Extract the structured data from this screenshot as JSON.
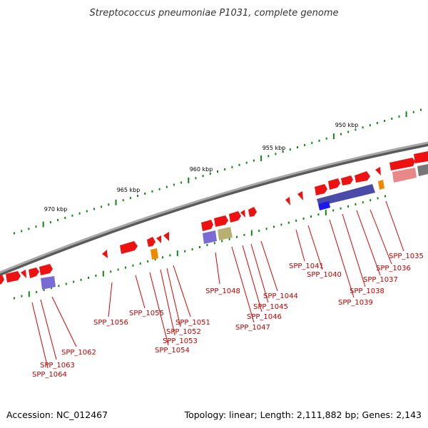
{
  "title": "Streptococcus pneumoniae P1031, complete genome",
  "footer": {
    "accession": "Accession: NC_012467",
    "summary": "Topology: linear; Length: 2,111,882 bp; Genes: 2,143"
  },
  "scale_labels": [
    "950 kbp",
    "955 kbp",
    "960 kbp",
    "965 kbp",
    "970 kbp"
  ],
  "gene_labels": [
    "SPP_1035",
    "SPP_1036",
    "SPP_1037",
    "SPP_1038",
    "SPP_1039",
    "SPP_1040",
    "SPP_1041",
    "SPP_1044",
    "SPP_1045",
    "SPP_1046",
    "SPP_1047",
    "SPP_1048",
    "SPP_1051",
    "SPP_1052",
    "SPP_1053",
    "SPP_1054",
    "SPP_1055",
    "SPP_1056",
    "SPP_1062",
    "SPP_1063",
    "SPP_1064"
  ],
  "colors": {
    "backbone": "#8a8a8a",
    "gene_forward": "#ee1111",
    "label_line": "#dd0000",
    "tick": "#118811",
    "feature_blue": "#4a4aa8",
    "feature_orange": "#f08800",
    "feature_olive": "#b8b070",
    "feature_pink": "#e88888",
    "feature_gray": "#777777"
  }
}
